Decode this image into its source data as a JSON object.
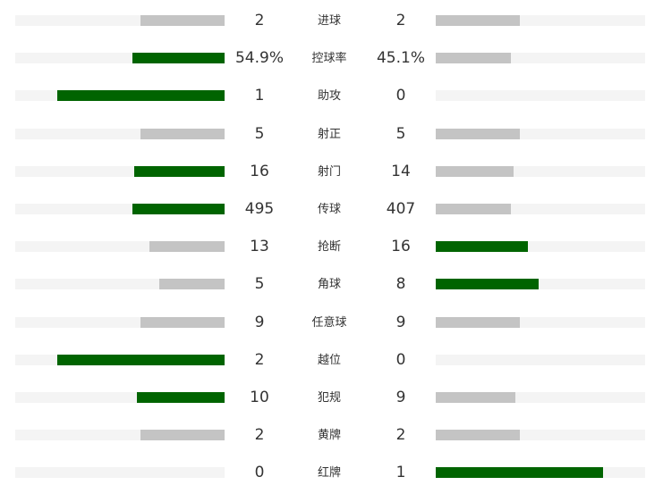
{
  "chart_data": {
    "type": "bar",
    "orientation": "horizontal-diverging",
    "rows": [
      {
        "label": "进球",
        "home": "2",
        "away": "2",
        "home_ratio": 0.4,
        "away_ratio": 0.4,
        "leader": "none"
      },
      {
        "label": "控球率",
        "home": "54.9%",
        "away": "45.1%",
        "home_ratio": 0.44,
        "away_ratio": 0.36,
        "leader": "home"
      },
      {
        "label": "助攻",
        "home": "1",
        "away": "0",
        "home_ratio": 0.8,
        "away_ratio": 0.0,
        "leader": "home"
      },
      {
        "label": "射正",
        "home": "5",
        "away": "5",
        "home_ratio": 0.4,
        "away_ratio": 0.4,
        "leader": "none"
      },
      {
        "label": "射门",
        "home": "16",
        "away": "14",
        "home_ratio": 0.43,
        "away_ratio": 0.37,
        "leader": "home"
      },
      {
        "label": "传球",
        "home": "495",
        "away": "407",
        "home_ratio": 0.44,
        "away_ratio": 0.36,
        "leader": "home"
      },
      {
        "label": "抢断",
        "home": "13",
        "away": "16",
        "home_ratio": 0.36,
        "away_ratio": 0.44,
        "leader": "away"
      },
      {
        "label": "角球",
        "home": "5",
        "away": "8",
        "home_ratio": 0.31,
        "away_ratio": 0.49,
        "leader": "away"
      },
      {
        "label": "任意球",
        "home": "9",
        "away": "9",
        "home_ratio": 0.4,
        "away_ratio": 0.4,
        "leader": "none"
      },
      {
        "label": "越位",
        "home": "2",
        "away": "0",
        "home_ratio": 0.8,
        "away_ratio": 0.0,
        "leader": "home"
      },
      {
        "label": "犯规",
        "home": "10",
        "away": "9",
        "home_ratio": 0.42,
        "away_ratio": 0.38,
        "leader": "home"
      },
      {
        "label": "黄牌",
        "home": "2",
        "away": "2",
        "home_ratio": 0.4,
        "away_ratio": 0.4,
        "leader": "none"
      },
      {
        "label": "红牌",
        "home": "0",
        "away": "1",
        "home_ratio": 0.0,
        "away_ratio": 0.8,
        "leader": "away"
      }
    ],
    "colors": {
      "leader": "#006400",
      "other": "#c4c4c4",
      "track": "#f4f4f4"
    },
    "grid": false,
    "legend": "none"
  }
}
